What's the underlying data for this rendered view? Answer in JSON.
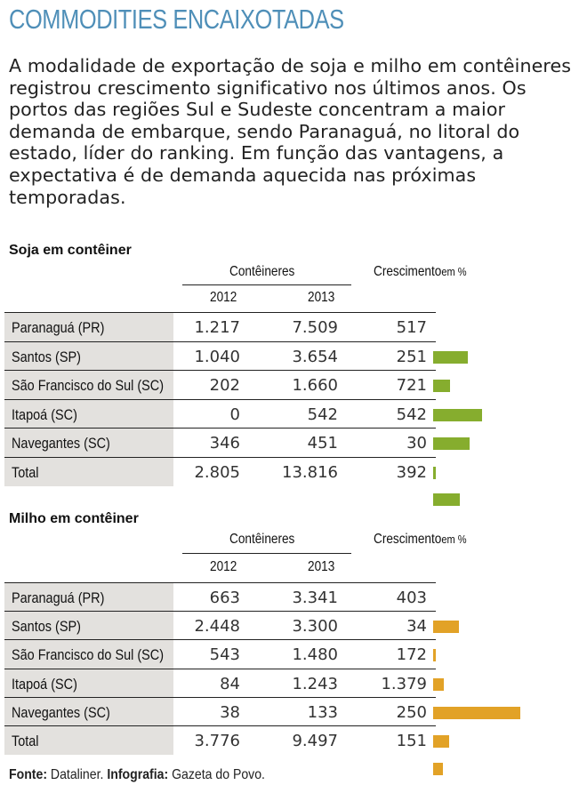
{
  "title": "COMMODITIES ENCAIXOTADAS",
  "lead": "A modalidade de exportação de soja e milho em contêineres registrou crescimento significativo nos últimos anos. Os portos das regiões Sul e Sudeste concentram a maior demanda de embarque, sendo Paranaguá, no litoral do estado, líder do ranking. Em função das vantagens, a expectativa é de demanda aquecida nas próximas temporadas.",
  "footer": {
    "source_label": "Fonte:",
    "source_value": "Dataliner.",
    "credit_label": "Infografia:",
    "credit_value": "Gazeta do Povo."
  },
  "chart_data": [
    {
      "type": "table",
      "title": "Soja em contêiner",
      "group_header": "Contêineres",
      "growth_header": "Crescimento",
      "growth_unit": "em %",
      "columns": [
        "2012",
        "2013"
      ],
      "bar_color": "#86ad2e",
      "rows": [
        {
          "label": "Paranaguá (PR)",
          "y2012": "1.217",
          "y2013": "7.509",
          "growth": "517",
          "bar_row": 0,
          "bar": 0
        },
        {
          "label": "Santos (SP)",
          "y2012": "1.040",
          "y2013": "3.654",
          "growth": "251",
          "bar_row": 1,
          "bar": 517
        },
        {
          "label": "São Francisco do Sul (SC)",
          "y2012": "202",
          "y2013": "1.660",
          "growth": "721",
          "bar_row": 2,
          "bar": 251
        },
        {
          "label": "Itapoá (SC)",
          "y2012": "0",
          "y2013": "542",
          "growth": "542",
          "bar_row": 3,
          "bar": 721
        },
        {
          "label": "Navegantes (SC)",
          "y2012": "346",
          "y2013": "451",
          "growth": "30",
          "bar_row": 4,
          "bar": 542
        },
        {
          "label": "Total",
          "y2012": "2.805",
          "y2013": "13.816",
          "growth": "392",
          "bar_row": 5,
          "bar": 30
        }
      ],
      "extra_bar": 392
    },
    {
      "type": "table",
      "title": "Milho em contêiner",
      "group_header": "Contêineres",
      "growth_header": "Crescimento",
      "growth_unit": "em %",
      "columns": [
        "2012",
        "2013"
      ],
      "bar_color": "#e2a227",
      "rows": [
        {
          "label": "Paranaguá (PR)",
          "y2012": "663",
          "y2013": "3.341",
          "growth": "403",
          "bar": 0
        },
        {
          "label": "Santos (SP)",
          "y2012": "2.448",
          "y2013": "3.300",
          "growth": "34",
          "bar": 403
        },
        {
          "label": "São Francisco do Sul (SC)",
          "y2012": "543",
          "y2013": "1.480",
          "growth": "172",
          "bar": 34
        },
        {
          "label": "Itapoá (SC)",
          "y2012": "84",
          "y2013": "1.243",
          "growth": "1.379",
          "bar": 172
        },
        {
          "label": "Navegantes (SC)",
          "y2012": "38",
          "y2013": "133",
          "growth": "250",
          "bar": 1379
        },
        {
          "label": "Total",
          "y2012": "3.776",
          "y2013": "9.497",
          "growth": "151",
          "bar": 250
        }
      ],
      "extra_bar": 151
    }
  ]
}
